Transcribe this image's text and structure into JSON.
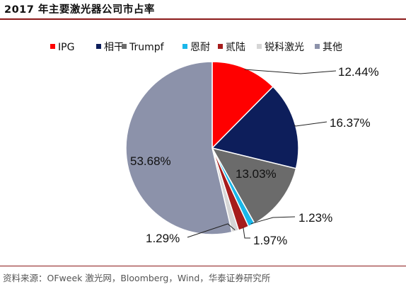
{
  "title": "2017 年主要激光器公司市占率",
  "source": "资料来源：OFweek 激光网，Bloomberg，Wind，华泰证券研究所",
  "chart_data": {
    "type": "pie",
    "title": "2017 年主要激光器公司市占率",
    "legend_position": "top",
    "labels": [
      "IPG",
      "相干",
      "Trumpf",
      "恩耐",
      "贰陆",
      "锐科激光",
      "其他"
    ],
    "values": [
      12.44,
      16.37,
      13.03,
      1.23,
      1.97,
      1.29,
      53.68
    ],
    "data_labels": [
      "12.44%",
      "16.37%",
      "13.03%",
      "1.23%",
      "1.97%",
      "1.29%",
      "53.68%"
    ],
    "colors": [
      "#ff0000",
      "#0d1e5b",
      "#6b6b6b",
      "#1ab7ea",
      "#a61c1c",
      "#d6d6d6",
      "#8c92aa"
    ]
  }
}
